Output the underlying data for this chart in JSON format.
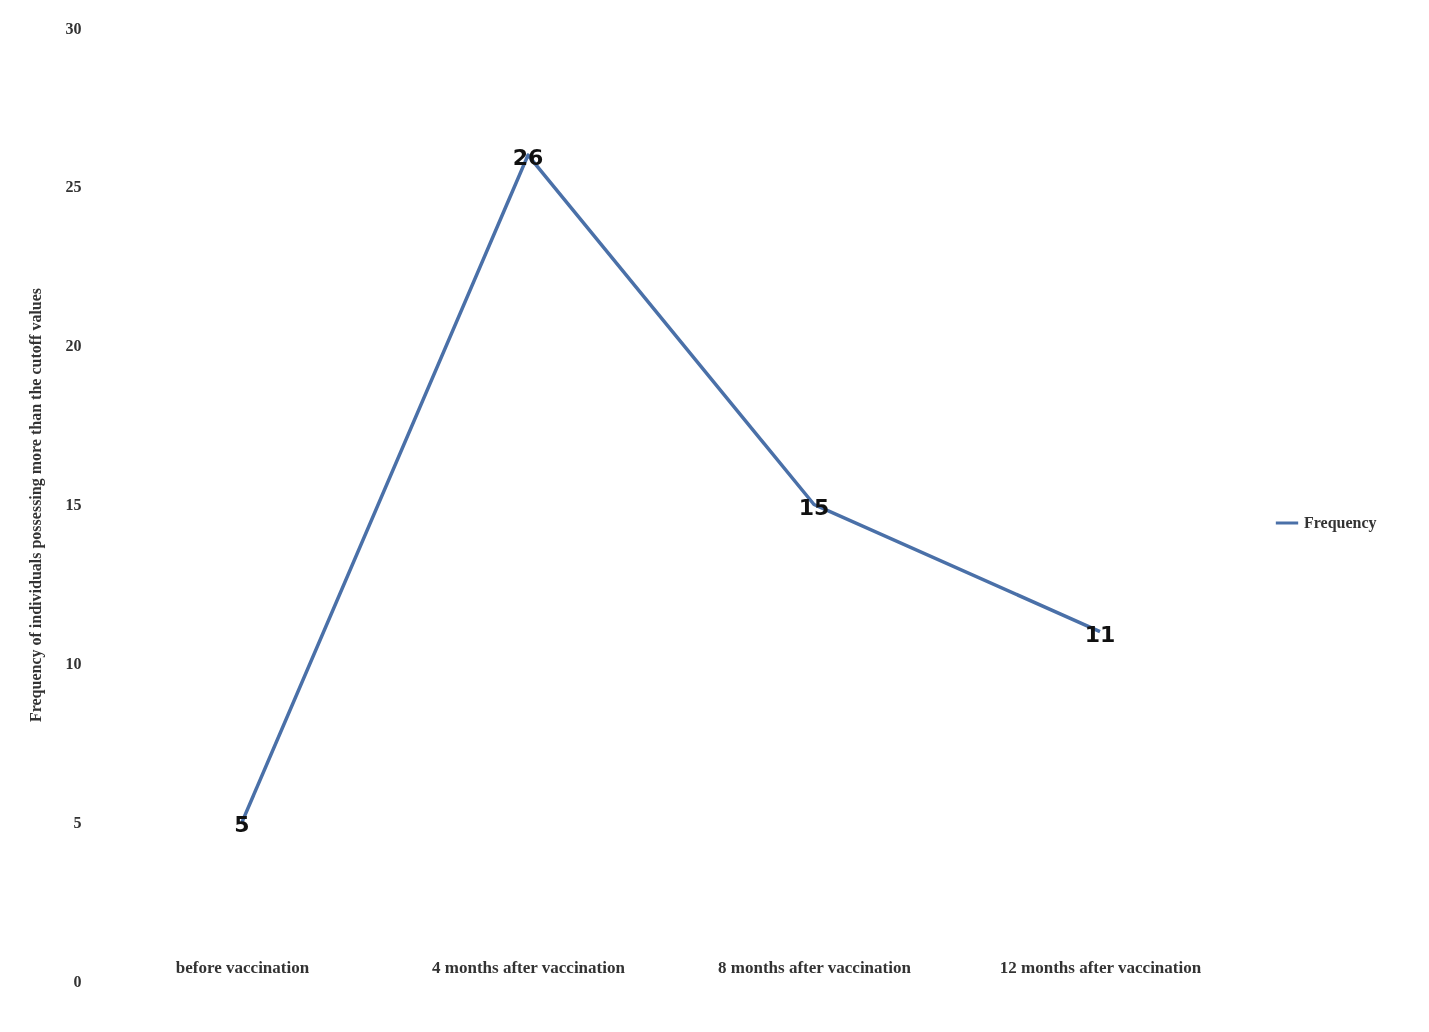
{
  "chart_data": {
    "type": "line",
    "ylabel": "Frequency  of individuals  possessing more than the cutoff values",
    "categories": [
      "before  vaccination",
      "4 months  after vaccination",
      "8 months  after vaccination",
      "12 months  after vaccination"
    ],
    "series": [
      {
        "name": "Frequency",
        "color": "#4a70a8",
        "values": [
          5,
          26,
          15,
          11
        ]
      }
    ],
    "ylim": [
      0,
      30
    ],
    "yticks": [
      0,
      5,
      10,
      15,
      20,
      25,
      30
    ],
    "data_labels": true,
    "legend": "right",
    "grid": false
  }
}
